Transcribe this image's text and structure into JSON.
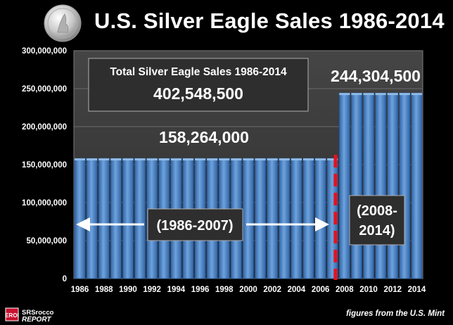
{
  "header": {
    "title": "U.S. Silver Eagle Sales 1986-2014"
  },
  "chart_data": {
    "type": "bar",
    "title": "U.S. Silver Eagle Sales 1986-2014",
    "xlabel": "",
    "ylabel": "",
    "ylim": [
      0,
      300000000
    ],
    "grid": true,
    "legend": "none",
    "y_ticks": [
      "0",
      "50,000,000",
      "100,000,000",
      "150,000,000",
      "200,000,000",
      "250,000,000",
      "300,000,000"
    ],
    "x_tick_labels": [
      "1986",
      "1988",
      "1990",
      "1992",
      "1994",
      "1996",
      "1998",
      "2000",
      "2002",
      "2004",
      "2006",
      "2008",
      "2010",
      "2012",
      "2014"
    ],
    "categories": [
      "1986",
      "1987",
      "1988",
      "1989",
      "1990",
      "1991",
      "1992",
      "1993",
      "1994",
      "1995",
      "1996",
      "1997",
      "1998",
      "1999",
      "2000",
      "2001",
      "2002",
      "2003",
      "2004",
      "2005",
      "2006",
      "2007",
      "2008",
      "2009",
      "2010",
      "2011",
      "2012",
      "2013",
      "2014"
    ],
    "values": [
      158264000,
      158264000,
      158264000,
      158264000,
      158264000,
      158264000,
      158264000,
      158264000,
      158264000,
      158264000,
      158264000,
      158264000,
      158264000,
      158264000,
      158264000,
      158264000,
      158264000,
      158264000,
      158264000,
      158264000,
      158264000,
      158264000,
      244304500,
      244304500,
      244304500,
      244304500,
      244304500,
      244304500,
      244304500
    ],
    "annotations": {
      "total_label": "Total Silver Eagle Sales 1986-2014",
      "total_value": "402,548,500",
      "period1_value": "158,264,000",
      "period2_value": "244,304,500",
      "period1_label": "(1986-2007)",
      "period2_label_line1": "(2008-",
      "period2_label_line2": "2014)"
    },
    "colors": {
      "bar": "#4a86c8",
      "bar_light": "#7fb0e3",
      "bar_dark": "#2b5d99",
      "divider": "#e8101c",
      "plot_bg": "#3a3a3a"
    }
  },
  "footer": {
    "logo_text": "SRSrocco REPORT",
    "source": "figures from the U.S. Mint"
  }
}
